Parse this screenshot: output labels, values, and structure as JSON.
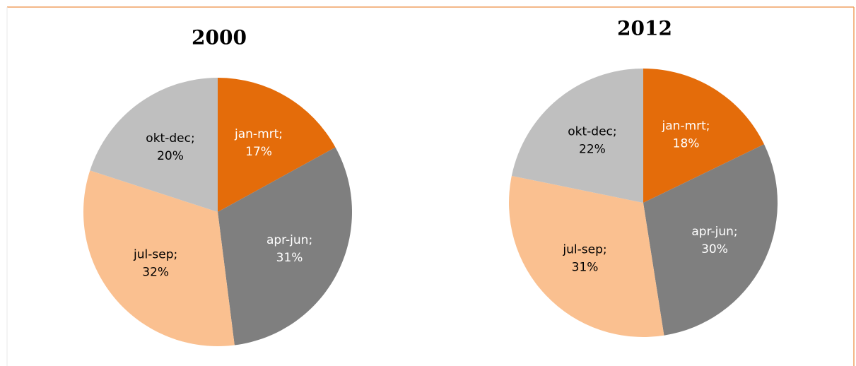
{
  "chart_data": [
    {
      "type": "pie",
      "title": "2000",
      "categories": [
        "jan-mrt;",
        "apr-jun;",
        "jul-sep;",
        "okt-dec;"
      ],
      "values": [
        17,
        31,
        32,
        20
      ],
      "value_labels": [
        "17%",
        "31%",
        "32%",
        "20%"
      ],
      "colors": [
        "#e46c0a",
        "#7f7f7f",
        "#fac090",
        "#bfbfbf"
      ],
      "label_colors": [
        "#ffffff",
        "#ffffff",
        "#000000",
        "#000000"
      ]
    },
    {
      "type": "pie",
      "title": "2012",
      "categories": [
        "jan-mrt;",
        "apr-jun;",
        "jul-sep;",
        "okt-dec;"
      ],
      "values": [
        18,
        30,
        31,
        22
      ],
      "value_labels": [
        "18%",
        "30%",
        "31%",
        "22%"
      ],
      "colors": [
        "#e46c0a",
        "#7f7f7f",
        "#fac090",
        "#bfbfbf"
      ],
      "label_colors": [
        "#ffffff",
        "#ffffff",
        "#000000",
        "#000000"
      ]
    }
  ]
}
